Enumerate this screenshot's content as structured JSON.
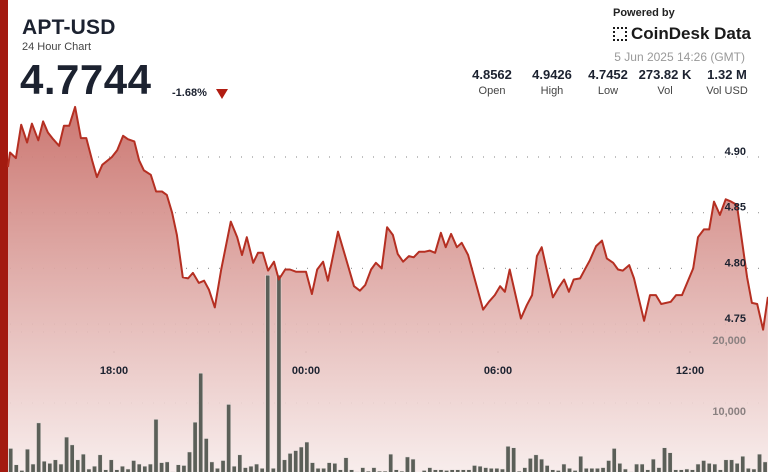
{
  "header": {
    "symbol": "APT-USD",
    "subtitle": "24 Hour Chart",
    "price": "4.7744",
    "change": "-1.68%",
    "change_direction_icon": "triangle-down-icon",
    "powered_by": "Powered by",
    "brand": "CoinDesk Data",
    "date": "5 Jun 2025 14:26 (GMT)"
  },
  "stats": [
    {
      "value": "4.8562",
      "label": "Open"
    },
    {
      "value": "4.9426",
      "label": "High"
    },
    {
      "value": "4.7452",
      "label": "Low"
    },
    {
      "value": "273.82 K",
      "label": "Vol"
    },
    {
      "value": "1.32 M",
      "label": "Vol USD"
    }
  ],
  "colors": {
    "accent": "#a31a10",
    "line": "#b52f22",
    "area_top": "#c9706a",
    "area_bottom": "#f7ebea",
    "volume_bar": "#5b5f58",
    "negative": "#b11d12"
  },
  "chart_data": {
    "type": "line",
    "price": {
      "yticks": [
        "4.90",
        "4.85",
        "4.80",
        "4.75"
      ],
      "ylim": [
        4.74,
        4.95
      ],
      "points": [
        [
          "14:41",
          4.891
        ],
        [
          "14:45",
          4.904
        ],
        [
          "14:56",
          4.899
        ],
        [
          "15:06",
          4.929
        ],
        [
          "15:17",
          4.913
        ],
        [
          "15:26",
          4.93
        ],
        [
          "15:38",
          4.915
        ],
        [
          "15:47",
          4.932
        ],
        [
          "15:56",
          4.922
        ],
        [
          "16:06",
          4.916
        ],
        [
          "16:17",
          4.91
        ],
        [
          "16:26",
          4.928
        ],
        [
          "16:36",
          4.928
        ],
        [
          "16:47",
          4.945
        ],
        [
          "16:58",
          4.917
        ],
        [
          "17:08",
          4.917
        ],
        [
          "17:19",
          4.897
        ],
        [
          "17:28",
          4.882
        ],
        [
          "17:38",
          4.893
        ],
        [
          "17:56",
          4.9
        ],
        [
          "18:06",
          4.906
        ],
        [
          "18:17",
          4.919
        ],
        [
          "18:26",
          4.916
        ],
        [
          "18:38",
          4.914
        ],
        [
          "18:47",
          4.897
        ],
        [
          "18:56",
          4.888
        ],
        [
          "19:09",
          4.884
        ],
        [
          "19:19",
          4.869
        ],
        [
          "19:30",
          4.869
        ],
        [
          "19:39",
          4.866
        ],
        [
          "19:49",
          4.85
        ],
        [
          "19:58",
          4.83
        ],
        [
          "20:09",
          4.792
        ],
        [
          "20:19",
          4.791
        ],
        [
          "20:28",
          4.796
        ],
        [
          "20:39",
          4.787
        ],
        [
          "20:49",
          4.789
        ],
        [
          "20:58",
          4.781
        ],
        [
          "21:09",
          4.765
        ],
        [
          "21:21",
          4.799
        ],
        [
          "21:39",
          4.842
        ],
        [
          "21:51",
          4.828
        ],
        [
          "22:00",
          4.812
        ],
        [
          "22:09",
          4.828
        ],
        [
          "22:21",
          4.805
        ],
        [
          "22:30",
          4.814
        ],
        [
          "22:39",
          4.814
        ],
        [
          "22:49",
          4.798
        ],
        [
          "23:00",
          4.806
        ],
        [
          "23:09",
          4.79
        ],
        [
          "23:21",
          4.799
        ],
        [
          "23:30",
          4.799
        ],
        [
          "23:41",
          4.797
        ],
        [
          "00:00",
          4.797
        ],
        [
          "00:11",
          4.777
        ],
        [
          "00:21",
          4.799
        ],
        [
          "00:32",
          4.806
        ],
        [
          "00:41",
          4.789
        ],
        [
          "01:00",
          4.833
        ],
        [
          "01:13",
          4.812
        ],
        [
          "01:30",
          4.784
        ],
        [
          "01:41",
          4.78
        ],
        [
          "01:51",
          4.785
        ],
        [
          "02:02",
          4.799
        ],
        [
          "02:11",
          4.805
        ],
        [
          "02:22",
          4.8
        ],
        [
          "02:32",
          4.837
        ],
        [
          "02:43",
          4.83
        ],
        [
          "02:52",
          4.813
        ],
        [
          "03:02",
          4.806
        ],
        [
          "03:13",
          4.811
        ],
        [
          "03:22",
          4.81
        ],
        [
          "03:32",
          4.815
        ],
        [
          "03:43",
          4.815
        ],
        [
          "03:52",
          4.816
        ],
        [
          "04:02",
          4.814
        ],
        [
          "04:13",
          4.832
        ],
        [
          "04:22",
          4.819
        ],
        [
          "04:32",
          4.831
        ],
        [
          "04:43",
          4.819
        ],
        [
          "04:52",
          4.823
        ],
        [
          "05:04",
          4.812
        ],
        [
          "05:32",
          4.763
        ],
        [
          "05:43",
          4.77
        ],
        [
          "05:54",
          4.776
        ],
        [
          "06:04",
          4.784
        ],
        [
          "06:13",
          4.779
        ],
        [
          "06:22",
          4.799
        ],
        [
          "06:43",
          4.755
        ],
        [
          "06:54",
          4.767
        ],
        [
          "07:04",
          4.776
        ],
        [
          "07:13",
          4.811
        ],
        [
          "07:22",
          4.819
        ],
        [
          "07:43",
          4.774
        ],
        [
          "07:54",
          4.783
        ],
        [
          "08:04",
          4.79
        ],
        [
          "08:13",
          4.779
        ],
        [
          "08:22",
          4.79
        ],
        [
          "08:34",
          4.791
        ],
        [
          "08:45",
          4.801
        ],
        [
          "08:52",
          4.807
        ],
        [
          "09:04",
          4.82
        ],
        [
          "09:15",
          4.825
        ],
        [
          "09:24",
          4.809
        ],
        [
          "09:36",
          4.805
        ],
        [
          "09:45",
          4.799
        ],
        [
          "09:54",
          4.798
        ],
        [
          "10:06",
          4.803
        ],
        [
          "10:15",
          4.791
        ],
        [
          "10:34",
          4.753
        ],
        [
          "10:45",
          4.776
        ],
        [
          "10:56",
          4.776
        ],
        [
          "11:06",
          4.768
        ],
        [
          "11:24",
          4.77
        ],
        [
          "11:34",
          4.776
        ],
        [
          "11:45",
          4.776
        ],
        [
          "12:06",
          4.8
        ],
        [
          "12:15",
          4.828
        ],
        [
          "12:26",
          4.835
        ],
        [
          "12:36",
          4.835
        ],
        [
          "12:45",
          4.86
        ],
        [
          "12:56",
          4.848
        ],
        [
          "13:07",
          4.862
        ],
        [
          "13:17",
          4.86
        ],
        [
          "13:28",
          4.857
        ],
        [
          "13:47",
          4.792
        ],
        [
          "13:56",
          4.769
        ],
        [
          "14:06",
          4.768
        ],
        [
          "14:17",
          4.745
        ],
        [
          "14:26",
          4.7744
        ]
      ]
    },
    "volume": {
      "yticks": [
        "20,000",
        "10,000"
      ],
      "values": [
        3600,
        1300,
        500,
        3500,
        1400,
        7200,
        1800,
        1500,
        2000,
        1400,
        5200,
        4100,
        2000,
        2800,
        700,
        1100,
        2700,
        600,
        2000,
        600,
        1100,
        700,
        1900,
        1400,
        1100,
        1400,
        7700,
        1600,
        1700,
        300,
        1300,
        1200,
        3100,
        7300,
        14200,
        5000,
        1700,
        800,
        1900,
        9800,
        1100,
        2700,
        900,
        1100,
        1400,
        800,
        28000,
        800,
        28000,
        2000,
        2900,
        3300,
        3800,
        4500,
        1600,
        800,
        800,
        1600,
        1500,
        600,
        2300,
        600,
        300,
        900,
        400,
        900,
        400,
        400,
        2800,
        600,
        400,
        2400,
        2100,
        100,
        500,
        900,
        600,
        600,
        500,
        600,
        600,
        600,
        600,
        1200,
        1100,
        900,
        800,
        800,
        700,
        3900,
        3700,
        400,
        900,
        2200,
        2700,
        2100,
        1200,
        600,
        500,
        1400,
        800,
        500,
        2500,
        800,
        800,
        800,
        900,
        1900,
        3600,
        1500,
        700,
        300,
        1400,
        1400,
        600,
        2100,
        900,
        3700,
        3000,
        600,
        600,
        700,
        600,
        1400,
        1900,
        1500,
        1400,
        600,
        2000,
        2000,
        1500,
        2500,
        800,
        700,
        2800,
        1700
      ]
    },
    "xticks": [
      "18:00",
      "00:00",
      "06:00",
      "12:00"
    ],
    "grid": "dotted"
  }
}
